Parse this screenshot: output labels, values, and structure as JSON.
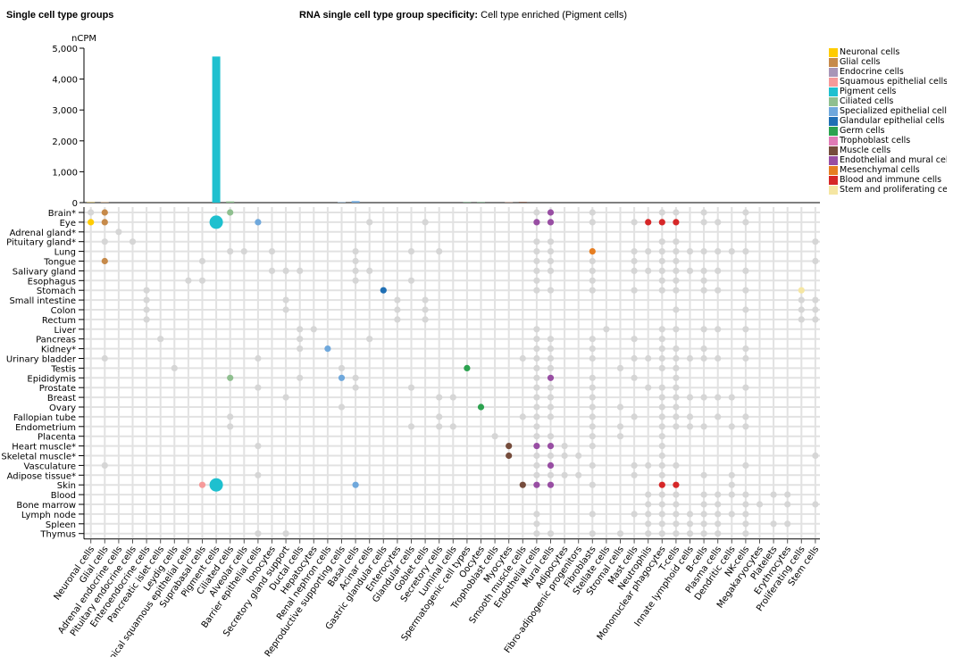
{
  "header": {
    "left_title": "Single cell type groups",
    "main_title_bold": "RNA single cell type group specificity:",
    "main_title_value": "Cell type enriched (Pigment cells)"
  },
  "chart_data": {
    "type": "bar+dot-matrix",
    "ylabel": "nCPM",
    "ylim": [
      0,
      5000
    ],
    "yticks": [
      "0",
      "1,000",
      "2,000",
      "3,000",
      "4,000",
      "5,000"
    ],
    "grid": true,
    "legend_position": "right",
    "groups": [
      {
        "name": "Neuronal cells",
        "color": "#ffcc00"
      },
      {
        "name": "Glial cells",
        "color": "#c68a4a"
      },
      {
        "name": "Endocrine cells",
        "color": "#a896b8"
      },
      {
        "name": "Squamous epithelial cells",
        "color": "#f69a9a"
      },
      {
        "name": "Pigment cells",
        "color": "#1ec0cf"
      },
      {
        "name": "Ciliated cells",
        "color": "#8fbf8f"
      },
      {
        "name": "Specialized epithelial cells",
        "color": "#6fa8dc"
      },
      {
        "name": "Glandular epithelial cells",
        "color": "#1f6fb4"
      },
      {
        "name": "Germ cells",
        "color": "#2ca24f"
      },
      {
        "name": "Trophoblast cells",
        "color": "#e07bb5"
      },
      {
        "name": "Muscle cells",
        "color": "#754c3c"
      },
      {
        "name": "Endothelial and mural cells",
        "color": "#984ea3"
      },
      {
        "name": "Mesenchymal cells",
        "color": "#e67e22"
      },
      {
        "name": "Blood and immune cells",
        "color": "#d62728"
      },
      {
        "name": "Stem and proliferating cells",
        "color": "#f5e6a3"
      }
    ],
    "non_enriched_color": "#d6d6d6",
    "categories": [
      "Neuronal cells",
      "Glial cells",
      "Adrenal endocrine cells",
      "Pituitary endocrine cells",
      "Enteroendocrine cells",
      "Pancreatic islet cells",
      "Leydig cells",
      "Apical squamous epithelial cells",
      "Suprabasal cells",
      "Pigment cells",
      "Ciliated cells",
      "Alveolar cells",
      "Barrier epithelial cells",
      "Ionocytes",
      "Secretory gland support",
      "Ductal cells",
      "Hepatocytes",
      "Renal nephron cells",
      "Reproductive supporting cells",
      "Basal cells",
      "Acinar cells",
      "Gastric glandular cells",
      "Enterocytes",
      "Glandular cells",
      "Goblet cells",
      "Secretory cells",
      "Luminal cells",
      "Spermatogenic cell types",
      "Oocytes",
      "Trophoblast cells",
      "Myocytes",
      "Smooth muscle cells",
      "Endothelial cells",
      "Mural cells",
      "Adipocytes",
      "Fibro-adipogenic progenitors",
      "Fibroblasts",
      "Stellate cells",
      "Stromal cells",
      "Mast cells",
      "Neutrophils",
      "Mononuclear phagocytes",
      "T-cells",
      "Innate lymphoid cells",
      "B-cells",
      "Plasma cells",
      "Dendritic cells",
      "NK-cells",
      "Megakaryocytes",
      "Platelets",
      "Erythrocytes",
      "Proliferating cells",
      "Stem cells"
    ],
    "category_group": [
      0,
      1,
      2,
      2,
      2,
      2,
      2,
      3,
      3,
      4,
      5,
      6,
      6,
      6,
      6,
      6,
      6,
      6,
      6,
      6,
      7,
      7,
      7,
      7,
      7,
      7,
      7,
      8,
      8,
      9,
      10,
      10,
      11,
      11,
      12,
      12,
      12,
      12,
      12,
      13,
      13,
      13,
      13,
      13,
      13,
      13,
      13,
      13,
      13,
      13,
      13,
      14,
      14
    ],
    "values": [
      8,
      10,
      0,
      0,
      0,
      0,
      0,
      0,
      0,
      4730,
      40,
      0,
      0,
      0,
      0,
      0,
      0,
      0,
      10,
      50,
      0,
      0,
      0,
      0,
      0,
      0,
      0,
      8,
      8,
      0,
      15,
      25,
      0,
      0,
      0,
      0,
      0,
      0,
      0,
      0,
      0,
      0,
      0,
      0,
      0,
      0,
      0,
      0,
      0,
      0,
      0,
      0,
      0
    ],
    "tissues": [
      {
        "name": "Brain*",
        "dots": [
          0,
          32,
          36,
          41,
          42,
          44,
          47
        ],
        "enriched": [
          1,
          10,
          33
        ],
        "large": []
      },
      {
        "name": "Eye",
        "dots": [
          20,
          24,
          36,
          39,
          44,
          45,
          47
        ],
        "enriched": [
          0,
          1,
          12,
          32,
          33,
          40,
          41,
          42
        ],
        "large": [
          9
        ]
      },
      {
        "name": "Adrenal gland*",
        "dots": [
          2
        ],
        "enriched": [],
        "large": []
      },
      {
        "name": "Pituitary gland*",
        "dots": [
          1,
          3,
          32,
          33,
          41,
          42,
          52
        ],
        "enriched": [],
        "large": []
      },
      {
        "name": "Lung",
        "dots": [
          10,
          11,
          13,
          19,
          23,
          25,
          32,
          33,
          39,
          40,
          41,
          42,
          43,
          44,
          45,
          46,
          47
        ],
        "enriched": [
          36
        ],
        "large": []
      },
      {
        "name": "Tongue",
        "dots": [
          8,
          19,
          32,
          33,
          36,
          39,
          41,
          42,
          52
        ],
        "enriched": [
          1
        ],
        "large": []
      },
      {
        "name": "Salivary gland",
        "dots": [
          13,
          14,
          15,
          19,
          20,
          32,
          33,
          36,
          39,
          40,
          41,
          42,
          43,
          44,
          45,
          47
        ],
        "enriched": [],
        "large": []
      },
      {
        "name": "Esophagus",
        "dots": [
          7,
          8,
          19,
          23,
          32,
          36,
          41,
          42,
          44
        ],
        "enriched": [],
        "large": []
      },
      {
        "name": "Stomach",
        "dots": [
          4,
          32,
          33,
          36,
          39,
          41,
          42,
          44,
          45,
          47
        ],
        "enriched": [
          21,
          51
        ],
        "large": []
      },
      {
        "name": "Small intestine",
        "dots": [
          4,
          14,
          22,
          24,
          51,
          52
        ],
        "enriched": [],
        "large": []
      },
      {
        "name": "Colon",
        "dots": [
          4,
          14,
          22,
          24,
          42,
          47,
          51,
          52
        ],
        "enriched": [],
        "large": []
      },
      {
        "name": "Rectum",
        "dots": [
          4,
          22,
          24,
          51,
          52
        ],
        "enriched": [],
        "large": []
      },
      {
        "name": "Liver",
        "dots": [
          15,
          16,
          32,
          37,
          41,
          42,
          44,
          45,
          47
        ],
        "enriched": [],
        "large": []
      },
      {
        "name": "Pancreas",
        "dots": [
          5,
          15,
          20,
          32,
          33,
          36,
          39,
          41
        ],
        "enriched": [],
        "large": []
      },
      {
        "name": "Kidney*",
        "dots": [
          15,
          32,
          33,
          36,
          41,
          42,
          44,
          47
        ],
        "enriched": [
          17
        ],
        "large": []
      },
      {
        "name": "Urinary bladder",
        "dots": [
          1,
          12,
          31,
          32,
          33,
          36,
          39,
          40,
          41,
          42,
          43,
          44,
          45,
          47
        ],
        "enriched": [],
        "large": []
      },
      {
        "name": "Testis",
        "dots": [
          6,
          18,
          32,
          33,
          38,
          41,
          42
        ],
        "enriched": [
          27
        ],
        "large": []
      },
      {
        "name": "Epididymis",
        "dots": [
          15,
          19,
          32,
          36,
          39,
          42
        ],
        "enriched": [
          10,
          18,
          33
        ],
        "large": []
      },
      {
        "name": "Prostate",
        "dots": [
          12,
          19,
          23,
          32,
          33,
          36,
          40,
          41,
          42,
          47
        ],
        "enriched": [],
        "large": []
      },
      {
        "name": "Breast",
        "dots": [
          14,
          25,
          26,
          32,
          33,
          36,
          41,
          42,
          43,
          44,
          45,
          46
        ],
        "enriched": [],
        "large": []
      },
      {
        "name": "Ovary",
        "dots": [
          18,
          32,
          33,
          36,
          38,
          41,
          42
        ],
        "enriched": [
          28
        ],
        "large": []
      },
      {
        "name": "Fallopian tube",
        "dots": [
          10,
          25,
          31,
          32,
          33,
          36,
          39,
          41,
          42,
          43,
          45,
          47
        ],
        "enriched": [],
        "large": []
      },
      {
        "name": "Endometrium",
        "dots": [
          10,
          23,
          25,
          26,
          32,
          36,
          38,
          41,
          42,
          43,
          44,
          46,
          47
        ],
        "enriched": [],
        "large": []
      },
      {
        "name": "Placenta",
        "dots": [
          29,
          32,
          33,
          36,
          38,
          41
        ],
        "enriched": [],
        "large": []
      },
      {
        "name": "Heart muscle*",
        "dots": [
          12,
          34,
          36,
          41
        ],
        "enriched": [
          30,
          32,
          33
        ],
        "large": []
      },
      {
        "name": "Skeletal muscle*",
        "dots": [
          32,
          33,
          34,
          35,
          41,
          52
        ],
        "enriched": [
          30
        ],
        "large": []
      },
      {
        "name": "Vasculature",
        "dots": [
          1,
          32,
          36,
          39,
          40,
          41,
          42,
          47
        ],
        "enriched": [
          33
        ],
        "large": []
      },
      {
        "name": "Adipose tissue*",
        "dots": [
          12,
          32,
          33,
          34,
          35,
          39,
          41,
          44,
          46
        ],
        "enriched": [],
        "large": []
      },
      {
        "name": "Skin",
        "dots": [
          36,
          46
        ],
        "enriched": [
          8,
          19,
          31,
          32,
          33,
          41,
          42
        ],
        "large": [
          9
        ]
      },
      {
        "name": "Blood",
        "dots": [
          40,
          41,
          42,
          44,
          45,
          46,
          47,
          49,
          50
        ],
        "enriched": [],
        "large": []
      },
      {
        "name": "Bone marrow",
        "dots": [
          40,
          41,
          42,
          44,
          45,
          47,
          48,
          50,
          52
        ],
        "enriched": [],
        "large": []
      },
      {
        "name": "Lymph node",
        "dots": [
          32,
          36,
          39,
          40,
          41,
          42,
          43,
          44,
          45,
          46,
          47
        ],
        "enriched": [],
        "large": []
      },
      {
        "name": "Spleen",
        "dots": [
          32,
          40,
          41,
          42,
          43,
          44,
          45,
          47,
          49,
          50
        ],
        "enriched": [],
        "large": []
      },
      {
        "name": "Thymus",
        "dots": [
          12,
          14,
          32,
          33,
          36,
          38,
          40,
          41,
          42,
          43,
          44,
          45,
          47
        ],
        "enriched": [],
        "large": []
      }
    ]
  }
}
